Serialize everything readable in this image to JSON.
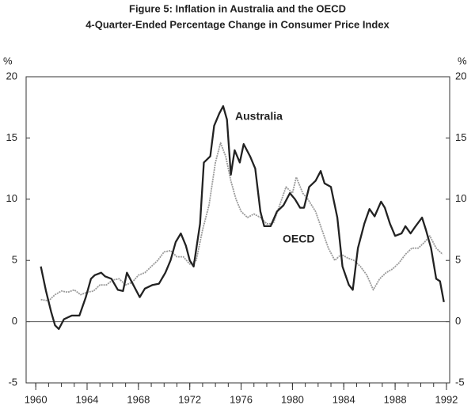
{
  "chart_data": {
    "type": "line",
    "title": "Figure 5: Inflation in Australia and the OECD",
    "subtitle": "4-Quarter-Ended Percentage Change in Consumer Price Index",
    "ylabel": "%",
    "y2label": "%",
    "xlim": [
      1959.25,
      1992.25
    ],
    "xticks": [
      1960,
      1964,
      1968,
      1972,
      1976,
      1980,
      1984,
      1988,
      1992
    ],
    "xminorticks": [
      1960,
      1961,
      1962,
      1963,
      1964,
      1965,
      1966,
      1967,
      1968,
      1969,
      1970,
      1971,
      1972,
      1973,
      1974,
      1975,
      1976,
      1977,
      1978,
      1979,
      1980,
      1981,
      1982,
      1983,
      1984,
      1985,
      1986,
      1987,
      1988,
      1989,
      1990,
      1991,
      1992
    ],
    "ylim": [
      -5,
      20
    ],
    "yticks": [
      -5,
      0,
      5,
      10,
      15,
      20
    ],
    "y2lim": [
      -5,
      20
    ],
    "y2ticks": [
      -5,
      0,
      5,
      10,
      15,
      20
    ],
    "annotations": [
      "Australia",
      "OECD"
    ],
    "series": [
      {
        "name": "Australia",
        "color": "#222222",
        "x": [
          1960.4,
          1960.8,
          1961.2,
          1961.5,
          1961.8,
          1962.2,
          1962.8,
          1963.4,
          1963.9,
          1964.3,
          1964.6,
          1965.1,
          1965.4,
          1965.9,
          1966.4,
          1966.8,
          1967.1,
          1967.6,
          1968.1,
          1968.5,
          1969.1,
          1969.6,
          1970.1,
          1970.5,
          1970.9,
          1971.3,
          1971.7,
          1972.0,
          1972.3,
          1972.8,
          1973.1,
          1973.6,
          1973.9,
          1974.3,
          1974.6,
          1974.9,
          1975.2,
          1975.5,
          1975.9,
          1976.2,
          1976.7,
          1977.1,
          1977.5,
          1977.8,
          1978.3,
          1978.8,
          1979.3,
          1979.8,
          1980.2,
          1980.6,
          1980.9,
          1981.3,
          1981.8,
          1982.2,
          1982.5,
          1983.0,
          1983.5,
          1983.9,
          1984.4,
          1984.7,
          1985.1,
          1985.6,
          1986.0,
          1986.4,
          1986.9,
          1987.2,
          1987.6,
          1988.0,
          1988.5,
          1988.8,
          1989.2,
          1989.6,
          1990.1,
          1990.4,
          1990.8,
          1991.2,
          1991.5,
          1991.8
        ],
        "values": [
          4.5,
          2.5,
          0.8,
          -0.3,
          -0.6,
          0.2,
          0.5,
          0.5,
          2.0,
          3.5,
          3.8,
          4.0,
          3.7,
          3.5,
          2.6,
          2.5,
          4.0,
          3.0,
          2.0,
          2.7,
          3.0,
          3.1,
          4.0,
          5.0,
          6.5,
          7.2,
          6.2,
          5.0,
          4.5,
          8.0,
          13.0,
          13.5,
          16.0,
          17.0,
          17.6,
          16.5,
          12.0,
          14.0,
          13.0,
          14.5,
          13.5,
          12.5,
          9.0,
          7.8,
          7.8,
          9.0,
          9.5,
          10.5,
          10.0,
          9.3,
          9.3,
          11.0,
          11.5,
          12.3,
          11.3,
          11.0,
          8.5,
          4.5,
          3.0,
          2.6,
          6.0,
          8.0,
          9.2,
          8.6,
          9.8,
          9.3,
          8.0,
          7.0,
          7.2,
          7.8,
          7.2,
          7.8,
          8.5,
          7.5,
          6.0,
          3.5,
          3.3,
          1.6
        ]
      },
      {
        "name": "OECD",
        "color": "#9a9a9a",
        "x": [
          1960.4,
          1961.0,
          1961.5,
          1962.0,
          1962.5,
          1963.0,
          1963.5,
          1964.0,
          1964.5,
          1965.0,
          1965.5,
          1966.0,
          1966.5,
          1967.0,
          1967.5,
          1968.0,
          1968.5,
          1969.0,
          1969.5,
          1970.0,
          1970.5,
          1971.0,
          1971.5,
          1972.0,
          1972.5,
          1973.0,
          1973.5,
          1974.0,
          1974.4,
          1974.8,
          1975.2,
          1975.6,
          1976.0,
          1976.5,
          1977.0,
          1977.5,
          1978.0,
          1978.5,
          1979.0,
          1979.5,
          1980.0,
          1980.3,
          1980.8,
          1981.2,
          1981.8,
          1982.3,
          1982.8,
          1983.3,
          1983.8,
          1984.3,
          1984.8,
          1985.3,
          1985.8,
          1986.3,
          1986.8,
          1987.3,
          1987.8,
          1988.3,
          1988.8,
          1989.3,
          1989.8,
          1990.3,
          1990.7,
          1991.2,
          1991.7
        ],
        "values": [
          1.8,
          1.7,
          2.2,
          2.5,
          2.4,
          2.6,
          2.2,
          2.4,
          2.5,
          3.0,
          3.0,
          3.4,
          3.5,
          3.0,
          3.2,
          3.8,
          4.0,
          4.5,
          5.0,
          5.7,
          5.8,
          5.3,
          5.3,
          4.7,
          5.0,
          7.5,
          9.5,
          13.0,
          14.6,
          13.5,
          11.5,
          10.0,
          9.0,
          8.5,
          8.8,
          8.5,
          8.0,
          8.0,
          9.5,
          11.0,
          10.5,
          11.8,
          10.5,
          10.0,
          9.0,
          7.5,
          6.0,
          5.0,
          5.5,
          5.2,
          5.0,
          4.5,
          3.8,
          2.6,
          3.5,
          4.0,
          4.3,
          4.8,
          5.5,
          6.0,
          6.0,
          6.5,
          7.0,
          6.0,
          5.5
        ]
      }
    ]
  }
}
